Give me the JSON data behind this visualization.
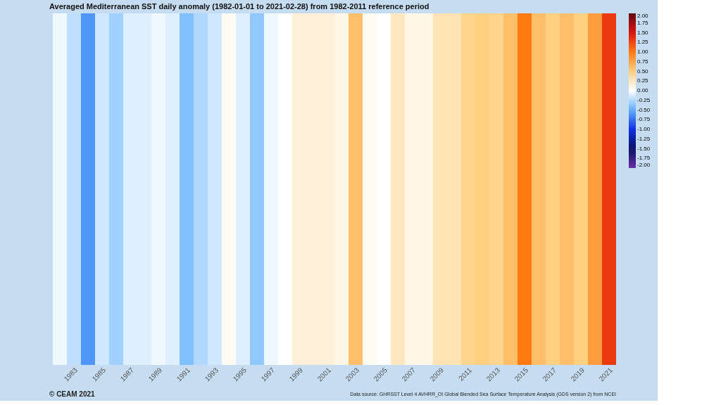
{
  "chart_data": {
    "type": "heatmap",
    "title": "Averaged Mediterranean SST daily anomaly (1982-01-01 to 2021-02-28) from 1982-2011 reference period",
    "categories": [
      null,
      "1983",
      null,
      "1985",
      null,
      "1987",
      null,
      "1989",
      null,
      "1991",
      null,
      "1993",
      null,
      "1995",
      null,
      "1997",
      null,
      "1999",
      null,
      "2001",
      null,
      "2003",
      null,
      "2005",
      null,
      "2007",
      null,
      "2009",
      null,
      "2011",
      null,
      "2013",
      null,
      "2015",
      null,
      "2017",
      null,
      "2019",
      null,
      "2021"
    ],
    "y_categories": [
      null
    ],
    "cells": [
      [
        -0.05,
        -0.2,
        -0.6,
        -0.15,
        -0.3,
        -0.1,
        -0.1,
        -0.05,
        -0.1,
        -0.4,
        -0.25,
        -0.15,
        0.05,
        -0.1,
        -0.35,
        -0.05,
        0.0,
        0.15,
        0.15,
        0.15,
        0.1,
        0.6,
        0.05,
        0.0,
        0.25,
        0.1,
        0.1,
        0.3,
        0.3,
        0.45,
        0.5,
        0.45,
        0.6,
        1.0,
        0.6,
        0.5,
        0.6,
        0.5,
        0.8,
        1.3
      ]
    ],
    "clim": [
      -2,
      2
    ],
    "cticks": [
      {
        "value": 2,
        "label": "2.00"
      },
      {
        "value": 1.75,
        "label": "1.75"
      },
      {
        "value": 1.5,
        "label": "1.50"
      },
      {
        "value": 1.25,
        "label": "1.25"
      },
      {
        "value": 1,
        "label": "1.00"
      },
      {
        "value": 0.75,
        "label": "0.75"
      },
      {
        "value": 0.5,
        "label": "0.50"
      },
      {
        "value": 0.25,
        "label": "0.25"
      },
      {
        "value": 0,
        "label": "0.00"
      },
      {
        "value": -0.25,
        "label": "-0.25"
      },
      {
        "value": -0.5,
        "label": "-0.50"
      },
      {
        "value": -0.75,
        "label": "-0.75"
      },
      {
        "value": -1,
        "label": "-1.00"
      },
      {
        "value": -1.25,
        "label": "-1.25"
      },
      {
        "value": -1.5,
        "label": "-1.50"
      },
      {
        "value": -1.75,
        "label": "-1.75"
      },
      {
        "value": -2,
        "label": "-2.00"
      }
    ],
    "annotations": [
      "© CEAM 2021",
      "Data source: GHRSST Level 4 AVHRR_OI Global Blended Sea Surface Temperature Analysis (GDS version 2) from NCEI"
    ]
  }
}
